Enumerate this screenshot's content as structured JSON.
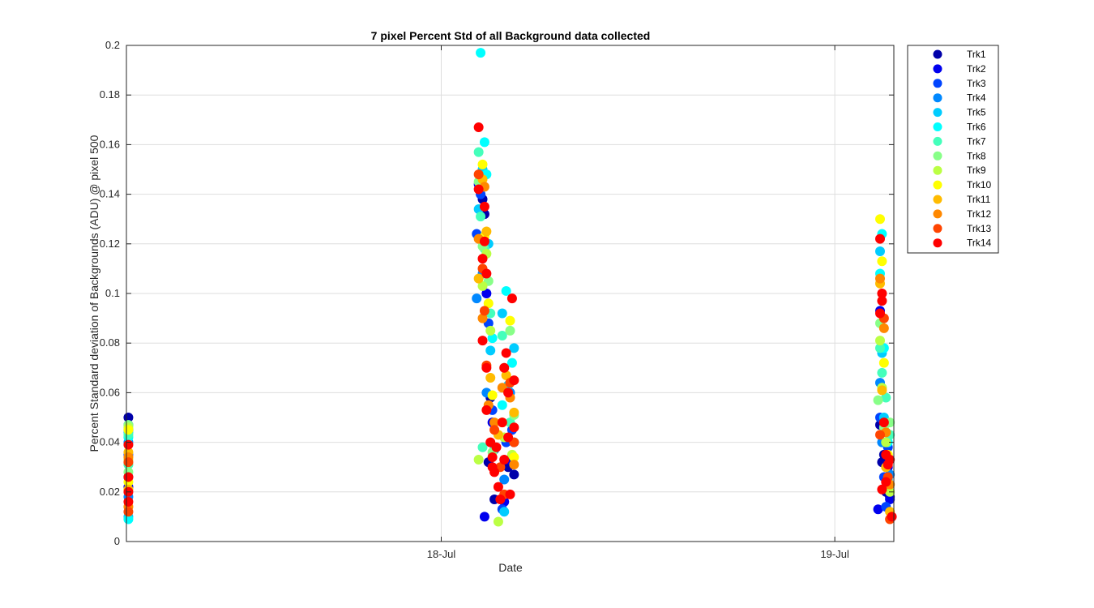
{
  "chart_data": {
    "type": "scatter",
    "title": "7 pixel Percent Std of all Background data collected",
    "xlabel": "Date",
    "ylabel": "Percent Standard deviation of Backgrounds (ADU) @ pixel 500",
    "x_range_days": [
      0.0,
      1.95
    ],
    "x_ticks": [
      {
        "value": 0.8,
        "label": "18-Jul"
      },
      {
        "value": 1.8,
        "label": "19-Jul"
      }
    ],
    "ylim": [
      0,
      0.2
    ],
    "y_ticks": [
      0,
      0.02,
      0.04,
      0.06,
      0.08,
      0.1,
      0.12,
      0.14,
      0.16,
      0.18,
      0.2
    ],
    "y_tick_labels": [
      "0",
      "0.02",
      "0.04",
      "0.06",
      "0.08",
      "0.1",
      "0.12",
      "0.14",
      "0.16",
      "0.18",
      "0.2"
    ],
    "grid": true,
    "legend_position": "outside-right",
    "series": [
      {
        "name": "Trk1",
        "color": "#0000aa",
        "points": [
          [
            0.005,
            0.05
          ],
          [
            0.005,
            0.026
          ],
          [
            0.905,
            0.138
          ],
          [
            0.91,
            0.132
          ],
          [
            0.925,
            0.058
          ],
          [
            0.92,
            0.032
          ],
          [
            0.935,
            0.017
          ],
          [
            0.97,
            0.03
          ],
          [
            0.985,
            0.027
          ],
          [
            1.915,
            0.047
          ],
          [
            1.92,
            0.032
          ],
          [
            1.93,
            0.02
          ],
          [
            1.94,
            0.018
          ],
          [
            1.925,
            0.035
          ]
        ]
      },
      {
        "name": "Trk2",
        "color": "#0000ee",
        "points": [
          [
            0.005,
            0.045
          ],
          [
            0.005,
            0.022
          ],
          [
            0.895,
            0.144
          ],
          [
            0.915,
            0.1
          ],
          [
            0.91,
            0.01
          ],
          [
            0.93,
            0.048
          ],
          [
            0.96,
            0.016
          ],
          [
            0.975,
            0.033
          ],
          [
            1.91,
            0.013
          ],
          [
            1.915,
            0.093
          ],
          [
            1.935,
            0.03
          ],
          [
            1.94,
            0.017
          ]
        ]
      },
      {
        "name": "Trk3",
        "color": "#0044ff",
        "points": [
          [
            0.005,
            0.047
          ],
          [
            0.005,
            0.035
          ],
          [
            0.89,
            0.124
          ],
          [
            0.9,
            0.14
          ],
          [
            0.92,
            0.088
          ],
          [
            0.93,
            0.053
          ],
          [
            0.955,
            0.013
          ],
          [
            0.965,
            0.04
          ],
          [
            0.98,
            0.045
          ],
          [
            1.915,
            0.05
          ],
          [
            1.925,
            0.026
          ],
          [
            1.935,
            0.038
          ],
          [
            1.93,
            0.014
          ]
        ]
      },
      {
        "name": "Trk4",
        "color": "#0088ff",
        "points": [
          [
            0.005,
            0.04
          ],
          [
            0.005,
            0.018
          ],
          [
            0.89,
            0.098
          ],
          [
            0.905,
            0.108
          ],
          [
            0.915,
            0.06
          ],
          [
            0.935,
            0.037
          ],
          [
            0.96,
            0.025
          ],
          [
            0.975,
            0.06
          ],
          [
            0.985,
            0.04
          ],
          [
            1.915,
            0.064
          ],
          [
            1.92,
            0.04
          ],
          [
            1.93,
            0.044
          ],
          [
            1.94,
            0.027
          ]
        ]
      },
      {
        "name": "Trk5",
        "color": "#00ccff",
        "points": [
          [
            0.005,
            0.044
          ],
          [
            0.005,
            0.01
          ],
          [
            0.895,
            0.134
          ],
          [
            0.905,
            0.15
          ],
          [
            0.92,
            0.12
          ],
          [
            0.925,
            0.077
          ],
          [
            0.955,
            0.092
          ],
          [
            0.97,
            0.063
          ],
          [
            0.985,
            0.078
          ],
          [
            0.96,
            0.012
          ],
          [
            1.915,
            0.117
          ],
          [
            1.92,
            0.076
          ],
          [
            1.925,
            0.05
          ],
          [
            1.935,
            0.025
          ]
        ]
      },
      {
        "name": "Trk6",
        "color": "#00ffff",
        "points": [
          [
            0.005,
            0.042
          ],
          [
            0.005,
            0.009
          ],
          [
            0.9,
            0.197
          ],
          [
            0.91,
            0.161
          ],
          [
            0.915,
            0.148
          ],
          [
            0.93,
            0.082
          ],
          [
            0.965,
            0.101
          ],
          [
            0.955,
            0.055
          ],
          [
            0.98,
            0.072
          ],
          [
            1.92,
            0.124
          ],
          [
            1.915,
            0.108
          ],
          [
            1.925,
            0.078
          ],
          [
            1.935,
            0.04
          ]
        ]
      },
      {
        "name": "Trk7",
        "color": "#44ffbb",
        "points": [
          [
            0.005,
            0.043
          ],
          [
            0.005,
            0.031
          ],
          [
            0.895,
            0.157
          ],
          [
            0.9,
            0.131
          ],
          [
            0.91,
            0.118
          ],
          [
            0.925,
            0.092
          ],
          [
            0.905,
            0.038
          ],
          [
            0.955,
            0.083
          ],
          [
            0.975,
            0.048
          ],
          [
            1.915,
            0.078
          ],
          [
            1.92,
            0.068
          ],
          [
            1.93,
            0.058
          ],
          [
            1.94,
            0.043
          ]
        ]
      },
      {
        "name": "Trk8",
        "color": "#88ff88",
        "points": [
          [
            0.005,
            0.047
          ],
          [
            0.005,
            0.028
          ],
          [
            0.895,
            0.145
          ],
          [
            0.905,
            0.119
          ],
          [
            0.92,
            0.105
          ],
          [
            0.93,
            0.036
          ],
          [
            0.96,
            0.07
          ],
          [
            0.975,
            0.085
          ],
          [
            0.985,
            0.051
          ],
          [
            1.915,
            0.088
          ],
          [
            1.91,
            0.057
          ],
          [
            1.925,
            0.046
          ],
          [
            1.94,
            0.048
          ]
        ]
      },
      {
        "name": "Trk9",
        "color": "#bbff44",
        "points": [
          [
            0.005,
            0.046
          ],
          [
            0.005,
            0.033
          ],
          [
            0.895,
            0.033
          ],
          [
            0.905,
            0.103
          ],
          [
            0.915,
            0.116
          ],
          [
            0.925,
            0.085
          ],
          [
            0.945,
            0.008
          ],
          [
            0.96,
            0.042
          ],
          [
            0.98,
            0.035
          ],
          [
            1.915,
            0.081
          ],
          [
            1.92,
            0.062
          ],
          [
            1.93,
            0.04
          ],
          [
            1.94,
            0.02
          ]
        ]
      },
      {
        "name": "Trk10",
        "color": "#ffff00",
        "points": [
          [
            0.005,
            0.045
          ],
          [
            0.005,
            0.024
          ],
          [
            0.905,
            0.152
          ],
          [
            0.91,
            0.123
          ],
          [
            0.92,
            0.096
          ],
          [
            0.93,
            0.059
          ],
          [
            0.955,
            0.048
          ],
          [
            0.975,
            0.089
          ],
          [
            0.985,
            0.034
          ],
          [
            1.915,
            0.13
          ],
          [
            1.92,
            0.113
          ],
          [
            1.925,
            0.072
          ],
          [
            1.935,
            0.035
          ]
        ]
      },
      {
        "name": "Trk11",
        "color": "#ffbb00",
        "points": [
          [
            0.005,
            0.036
          ],
          [
            0.005,
            0.021
          ],
          [
            0.895,
            0.106
          ],
          [
            0.905,
            0.146
          ],
          [
            0.915,
            0.125
          ],
          [
            0.925,
            0.066
          ],
          [
            0.945,
            0.043
          ],
          [
            0.965,
            0.067
          ],
          [
            0.985,
            0.052
          ],
          [
            1.915,
            0.104
          ],
          [
            1.92,
            0.061
          ],
          [
            1.93,
            0.03
          ],
          [
            1.94,
            0.012
          ]
        ]
      },
      {
        "name": "Trk12",
        "color": "#ff8800",
        "points": [
          [
            0.005,
            0.034
          ],
          [
            0.005,
            0.014
          ],
          [
            0.895,
            0.122
          ],
          [
            0.91,
            0.143
          ],
          [
            0.905,
            0.09
          ],
          [
            0.92,
            0.055
          ],
          [
            0.935,
            0.048
          ],
          [
            0.955,
            0.062
          ],
          [
            0.975,
            0.058
          ],
          [
            0.985,
            0.031
          ],
          [
            1.915,
            0.106
          ],
          [
            1.925,
            0.086
          ],
          [
            1.93,
            0.044
          ],
          [
            1.94,
            0.023
          ]
        ]
      },
      {
        "name": "Trk13",
        "color": "#ff4400",
        "points": [
          [
            0.005,
            0.032
          ],
          [
            0.005,
            0.012
          ],
          [
            0.895,
            0.148
          ],
          [
            0.905,
            0.11
          ],
          [
            0.91,
            0.093
          ],
          [
            0.915,
            0.071
          ],
          [
            0.935,
            0.045
          ],
          [
            0.95,
            0.03
          ],
          [
            0.96,
            0.019
          ],
          [
            0.975,
            0.064
          ],
          [
            0.985,
            0.04
          ],
          [
            1.915,
            0.043
          ],
          [
            1.925,
            0.09
          ],
          [
            1.935,
            0.026
          ],
          [
            1.94,
            0.009
          ]
        ]
      },
      {
        "name": "Trk14",
        "color": "#ff0000",
        "points": [
          [
            0.005,
            0.039
          ],
          [
            0.005,
            0.02
          ],
          [
            0.005,
            0.016
          ],
          [
            0.005,
            0.026
          ],
          [
            0.895,
            0.167
          ],
          [
            0.895,
            0.142
          ],
          [
            0.905,
            0.114
          ],
          [
            0.91,
            0.135
          ],
          [
            0.91,
            0.121
          ],
          [
            0.915,
            0.108
          ],
          [
            0.905,
            0.081
          ],
          [
            0.915,
            0.07
          ],
          [
            0.915,
            0.053
          ],
          [
            0.925,
            0.04
          ],
          [
            0.93,
            0.034
          ],
          [
            0.935,
            0.028
          ],
          [
            0.945,
            0.022
          ],
          [
            0.95,
            0.017
          ],
          [
            0.955,
            0.048
          ],
          [
            0.96,
            0.07
          ],
          [
            0.965,
            0.076
          ],
          [
            0.97,
            0.06
          ],
          [
            0.975,
            0.019
          ],
          [
            0.98,
            0.098
          ],
          [
            0.985,
            0.065
          ],
          [
            0.985,
            0.046
          ],
          [
            0.93,
            0.03
          ],
          [
            0.94,
            0.038
          ],
          [
            0.96,
            0.033
          ],
          [
            0.97,
            0.042
          ],
          [
            1.915,
            0.122
          ],
          [
            1.92,
            0.1
          ],
          [
            1.92,
            0.097
          ],
          [
            1.915,
            0.092
          ],
          [
            1.925,
            0.048
          ],
          [
            1.93,
            0.035
          ],
          [
            1.935,
            0.031
          ],
          [
            1.94,
            0.033
          ],
          [
            1.93,
            0.024
          ],
          [
            1.92,
            0.021
          ],
          [
            1.945,
            0.01
          ]
        ]
      }
    ]
  }
}
